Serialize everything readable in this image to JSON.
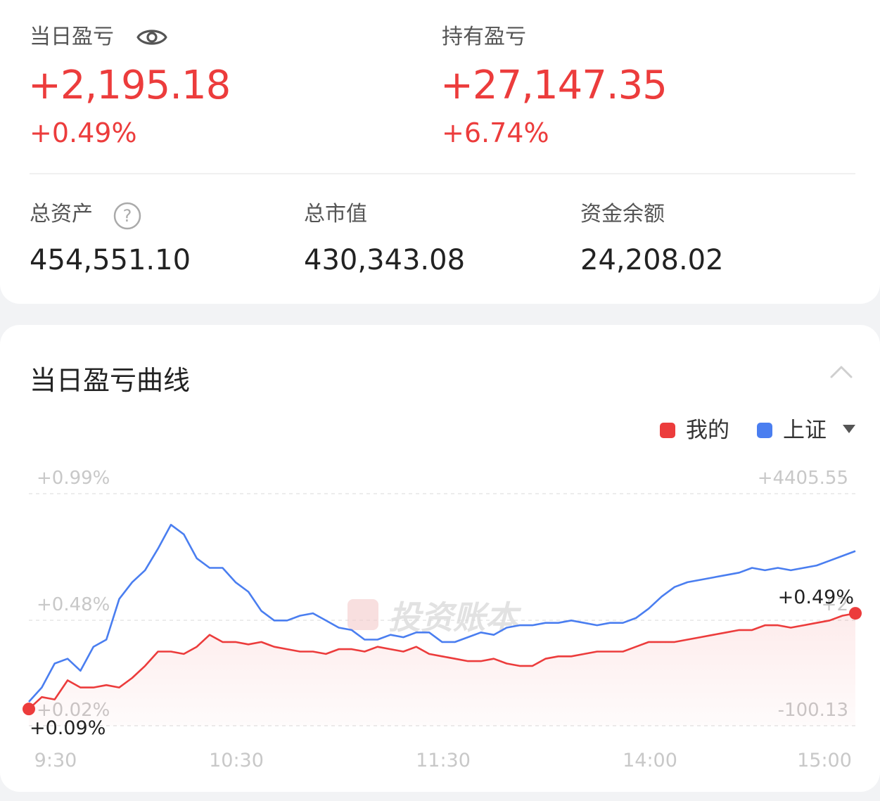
{
  "summary": {
    "daily_pl": {
      "label": "当日盈亏",
      "value": "+2,195.18",
      "pct": "+0.49%",
      "icon": "eye-icon"
    },
    "holding_pl": {
      "label": "持有盈亏",
      "value": "+27,147.35",
      "pct": "+6.74%"
    },
    "total_assets": {
      "label": "总资产",
      "value": "454,551.10",
      "icon": "help-icon"
    },
    "market_value": {
      "label": "总市值",
      "value": "430,343.08"
    },
    "cash_balance": {
      "label": "资金余额",
      "value": "24,208.02"
    }
  },
  "colors": {
    "red": "#ec3c3c",
    "blue": "#4a7ef0",
    "gray": "#bbbbbb"
  },
  "chart_section": {
    "title": "当日盈亏曲线",
    "collapse_icon": "chevron-up-icon",
    "dropdown_icon": "caret-down-icon",
    "watermark": "投资账本"
  },
  "chart_data": {
    "type": "line",
    "legend": [
      {
        "name": "我的",
        "color": "#ec3c3c"
      },
      {
        "name": "上证",
        "color": "#4a7ef0"
      }
    ],
    "x_ticks": [
      "9:30",
      "10:30",
      "11:30",
      "14:00",
      "15:00"
    ],
    "left_ticks": [
      "+0.99%",
      "+0.48%",
      "+0.02%"
    ],
    "right_ticks": [
      "+4405.55",
      "+2",
      "-100.13"
    ],
    "ylim_pct": [
      0.02,
      0.99
    ],
    "start_label": "+0.09%",
    "end_label": "+0.49%",
    "series": [
      {
        "name": "我的",
        "color": "#ec3c3c",
        "values": [
          0.09,
          0.14,
          0.13,
          0.21,
          0.18,
          0.18,
          0.19,
          0.18,
          0.22,
          0.27,
          0.33,
          0.33,
          0.32,
          0.35,
          0.4,
          0.37,
          0.37,
          0.36,
          0.37,
          0.35,
          0.34,
          0.33,
          0.33,
          0.32,
          0.34,
          0.34,
          0.33,
          0.35,
          0.34,
          0.33,
          0.35,
          0.32,
          0.31,
          0.3,
          0.29,
          0.29,
          0.3,
          0.28,
          0.27,
          0.27,
          0.3,
          0.31,
          0.31,
          0.32,
          0.33,
          0.33,
          0.33,
          0.35,
          0.37,
          0.37,
          0.37,
          0.38,
          0.39,
          0.4,
          0.41,
          0.42,
          0.42,
          0.44,
          0.44,
          0.43,
          0.44,
          0.45,
          0.46,
          0.48,
          0.49
        ]
      },
      {
        "name": "上证",
        "color": "#4a7ef0",
        "values": [
          0.12,
          0.18,
          0.28,
          0.3,
          0.25,
          0.35,
          0.38,
          0.55,
          0.62,
          0.67,
          0.76,
          0.86,
          0.82,
          0.72,
          0.68,
          0.68,
          0.62,
          0.58,
          0.5,
          0.46,
          0.46,
          0.48,
          0.49,
          0.46,
          0.43,
          0.42,
          0.38,
          0.38,
          0.4,
          0.39,
          0.41,
          0.41,
          0.37,
          0.37,
          0.39,
          0.41,
          0.4,
          0.43,
          0.44,
          0.44,
          0.45,
          0.45,
          0.46,
          0.45,
          0.44,
          0.45,
          0.45,
          0.47,
          0.51,
          0.56,
          0.6,
          0.62,
          0.63,
          0.64,
          0.65,
          0.66,
          0.68,
          0.67,
          0.68,
          0.67,
          0.68,
          0.69,
          0.71,
          0.73,
          0.75
        ]
      }
    ]
  }
}
